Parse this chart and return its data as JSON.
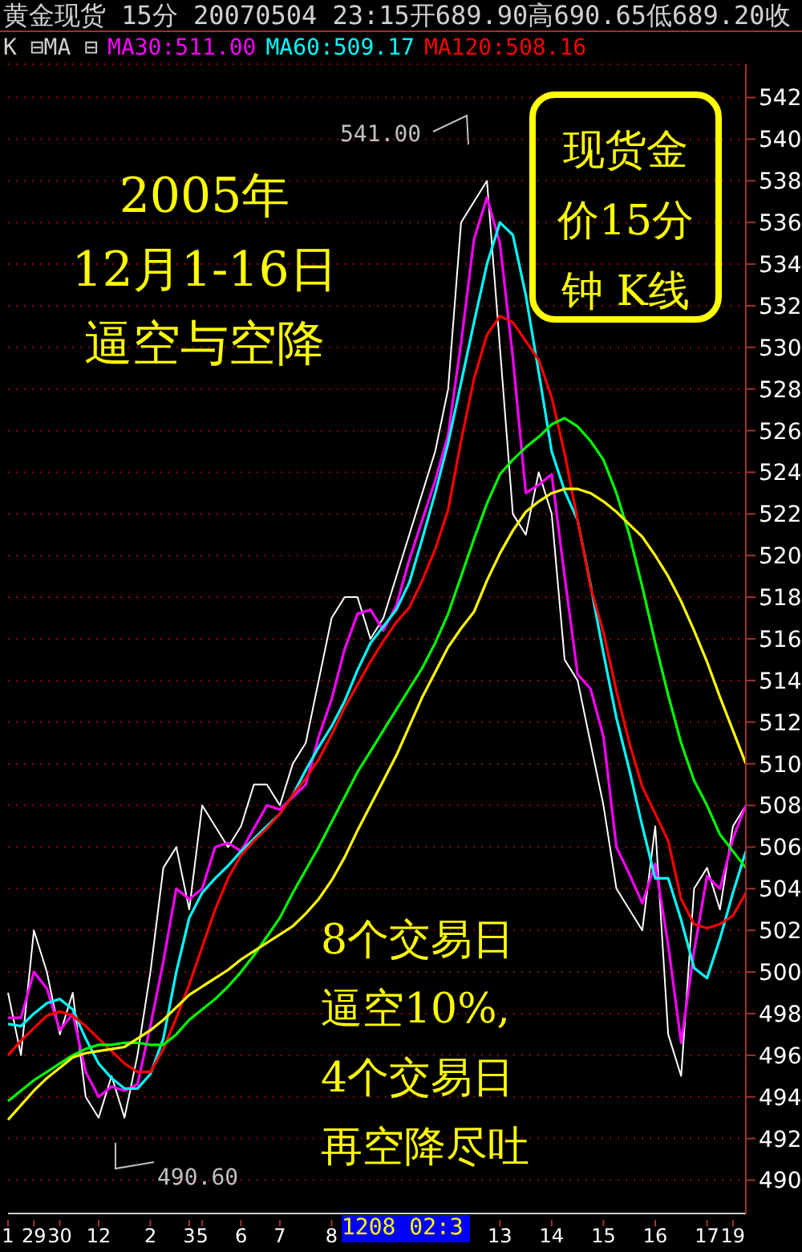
{
  "chart_data": {
    "type": "line",
    "title": "黄金现货 15分 20070504 23:15开689.90高690.65低689.20收",
    "subtitle": "K ⊟MA ⊟",
    "categories": [
      "1",
      null,
      "29",
      null,
      "30",
      null,
      null,
      "12",
      null,
      null,
      null,
      "2",
      null,
      null,
      "3",
      "5",
      null,
      null,
      "6",
      null,
      null,
      "7",
      null,
      null,
      null,
      "8",
      null,
      null,
      null,
      null,
      null,
      null,
      null,
      null,
      null,
      null,
      null,
      null,
      "13",
      null,
      null,
      null,
      "14",
      null,
      null,
      null,
      "15",
      null,
      null,
      null,
      "16",
      null,
      null,
      null,
      "17",
      null,
      "19",
      null
    ],
    "series": [
      {
        "color": "#ffffff",
        "values": [
          499,
          496,
          502,
          500,
          497,
          499,
          494,
          493,
          495,
          493,
          496,
          500,
          505,
          506,
          503,
          508,
          507,
          506,
          507,
          509,
          509,
          508,
          510,
          511,
          514,
          517,
          518,
          518,
          516,
          517,
          519,
          521,
          523,
          525,
          528,
          536,
          537,
          538,
          530,
          522,
          521,
          524,
          522,
          515,
          514,
          511,
          508,
          504,
          503,
          502,
          507,
          497,
          495,
          504,
          505,
          503,
          507,
          508
        ]
      },
      {
        "name": "MA30:511.00",
        "color": "#ff00ff",
        "values": [
          497.8,
          497.8,
          500.0,
          499.2,
          497.2,
          498.0,
          495.2,
          494.0,
          494.5,
          494.3,
          494.6,
          497.4,
          500.5,
          504.0,
          503.5,
          504.0,
          506.0,
          506.2,
          505.8,
          506.9,
          508.0,
          507.8,
          508.4,
          509.0,
          511.3,
          513.1,
          515.5,
          517.2,
          517.4,
          516.4,
          517.6,
          519.8,
          521.7,
          523.6,
          525.8,
          530.2,
          535.2,
          537.2,
          535.0,
          529.5,
          523.0,
          523.4,
          523.9,
          519.0,
          514.3,
          513.6,
          511.3,
          506.0,
          504.7,
          503.3,
          505.2,
          501.3,
          496.6,
          501.0,
          504.6,
          504.0,
          506.4,
          508.0
        ]
      },
      {
        "name": "MA60:509.17",
        "color": "#00ffff",
        "values": [
          497.5,
          497.4,
          498.0,
          498.5,
          498.7,
          498.2,
          496.8,
          495.6,
          494.9,
          494.4,
          494.4,
          495.1,
          496.8,
          500.0,
          502.6,
          503.8,
          504.5,
          505.1,
          505.8,
          506.4,
          507.0,
          507.6,
          508.5,
          509.7,
          510.8,
          511.8,
          513.0,
          514.5,
          515.8,
          516.6,
          517.4,
          518.7,
          520.8,
          523.0,
          525.4,
          528.3,
          531.2,
          534.0,
          536.0,
          535.4,
          532.5,
          528.8,
          525.0,
          523.1,
          521.7,
          518.6,
          515.3,
          512.2,
          509.7,
          507.0,
          504.5,
          504.5,
          502.5,
          500.2,
          499.7,
          501.6,
          503.8,
          505.8
        ]
      },
      {
        "name": "MA120:508.16",
        "color": "#ff0000",
        "values": [
          496.0,
          496.7,
          497.3,
          497.9,
          498.1,
          497.9,
          497.4,
          496.8,
          496.2,
          495.6,
          495.2,
          495.2,
          496.3,
          497.8,
          499.4,
          501.2,
          503.0,
          504.5,
          505.6,
          506.3,
          506.9,
          507.6,
          508.5,
          509.3,
          510.2,
          511.4,
          512.7,
          513.8,
          514.9,
          515.9,
          516.8,
          517.5,
          518.8,
          520.3,
          522.2,
          525.5,
          528.5,
          530.6,
          531.5,
          531.2,
          530.3,
          529.4,
          527.6,
          524.9,
          521.7,
          518.5,
          516.3,
          513.5,
          511.0,
          508.9,
          507.6,
          506.3,
          503.5,
          502.3,
          502.1,
          502.3,
          502.7,
          503.8
        ]
      },
      {
        "color": "#00ff00",
        "values": [
          493.8,
          494.3,
          494.8,
          495.2,
          495.6,
          496.0,
          496.3,
          496.5,
          496.5,
          496.6,
          496.6,
          496.5,
          496.5,
          497.0,
          497.7,
          498.2,
          498.7,
          499.3,
          500.0,
          500.8,
          501.7,
          502.6,
          503.8,
          504.9,
          506.0,
          507.2,
          508.4,
          509.6,
          510.6,
          511.6,
          512.6,
          513.6,
          514.6,
          515.8,
          517.2,
          519.0,
          520.8,
          522.5,
          523.9,
          524.6,
          525.2,
          525.7,
          526.3,
          526.6,
          526.2,
          525.5,
          524.6,
          523.0,
          521.0,
          518.5,
          515.8,
          513.3,
          511.0,
          509.2,
          508.0,
          506.6,
          505.8,
          505.0
        ]
      },
      {
        "color": "#ffff00",
        "values": [
          492.9,
          493.6,
          494.3,
          494.9,
          495.4,
          495.9,
          496.1,
          496.2,
          496.3,
          496.4,
          496.8,
          497.2,
          497.7,
          498.3,
          498.9,
          499.3,
          499.7,
          500.1,
          500.6,
          501.0,
          501.4,
          501.8,
          502.2,
          502.8,
          503.5,
          504.4,
          505.5,
          506.8,
          508.0,
          509.2,
          510.4,
          511.8,
          513.2,
          514.4,
          515.6,
          516.5,
          517.3,
          518.8,
          520.1,
          521.2,
          522.1,
          522.6,
          523.0,
          523.2,
          523.2,
          523.0,
          522.6,
          522.1,
          521.5,
          520.9,
          520.0,
          519.0,
          517.8,
          516.4,
          514.9,
          513.2,
          511.6,
          510.0
        ]
      }
    ],
    "ylim": [
      488.4,
      543.6
    ],
    "yticks": [
      490,
      492,
      494,
      496,
      498,
      500,
      502,
      504,
      506,
      508,
      510,
      512,
      514,
      516,
      518,
      520,
      522,
      524,
      526,
      528,
      530,
      532,
      534,
      536,
      538,
      540,
      542
    ],
    "grid": "y",
    "legend": "top left",
    "marker": "none",
    "annotations": [
      "2005年",
      "12月1-16日",
      "逼空与空降",
      "现货金",
      "价15分",
      "钟 K线",
      "8个交易日",
      "逼空10%,",
      "4个交易日",
      "再空降尽吐",
      "541.00",
      "490.60",
      "1208 02:3"
    ]
  }
}
